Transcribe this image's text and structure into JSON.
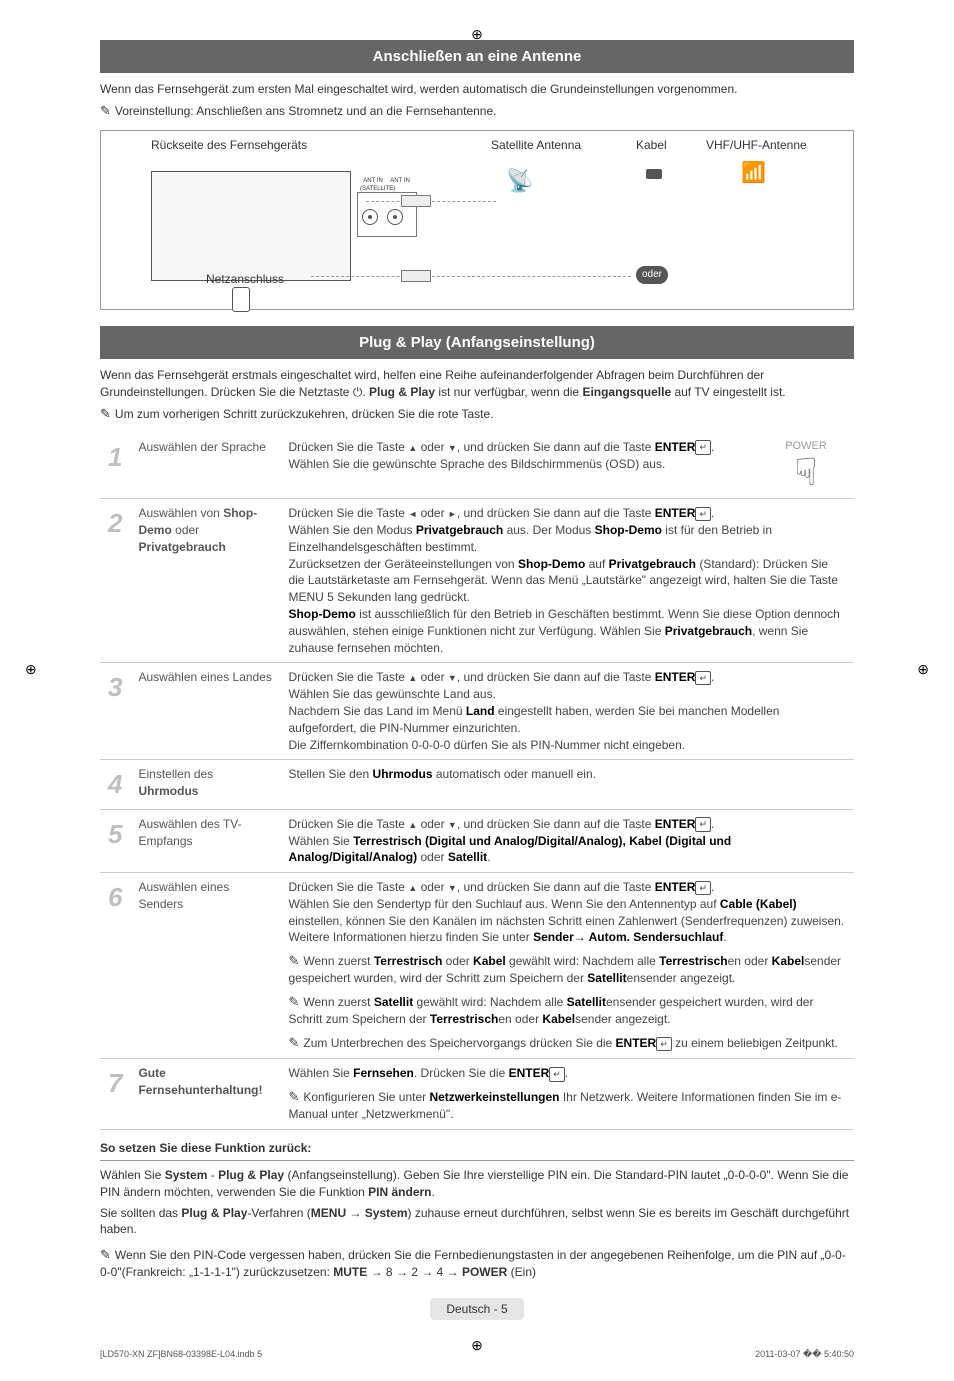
{
  "regmarks": "⊕",
  "section1": {
    "header": "Anschließen an eine Antenne",
    "intro": "Wenn das Fernsehgerät zum ersten Mal eingeschaltet wird, werden automatisch die Grundeinstellungen vorgenommen.",
    "note": "Voreinstellung: Anschließen ans Stromnetz und an die Fernsehantenne."
  },
  "diagram": {
    "tv_back": "Rückseite des Fernsehgeräts",
    "netzanschluss": "Netzanschluss",
    "satellite": "Satellite Antenna",
    "kabel": "Kabel",
    "vhf": "VHF/UHF-Antenne",
    "oder": "oder",
    "ant_sat": "ANT IN (SATELLITE)",
    "ant_in": "ANT IN"
  },
  "section2": {
    "header": "Plug & Play (Anfangseinstellung)",
    "intro1": "Wenn das Fernsehgerät erstmals eingeschaltet wird, helfen eine Reihe aufeinanderfolgender Abfragen beim Durchführen der Grundeinstellungen. Drücken Sie die Netztaste ",
    "intro2_part1": ". ",
    "intro2_bold1": "Plug & Play",
    "intro2_part2": " ist nur verfügbar, wenn die ",
    "intro2_bold2": "Eingangsquelle",
    "intro2_part3": " auf TV eingestellt ist.",
    "note": "Um zum vorherigen Schritt zurückzukehren, drücken Sie die rote Taste.",
    "power_label": "POWER"
  },
  "steps": [
    {
      "num": "1",
      "title": "Auswählen der Sprache",
      "desc_html": "Drücken Sie die Taste <span class='arrow-up'></span> oder <span class='arrow-down'></span>, und drücken Sie dann auf die Taste <b>ENTER</b><span class='enter-icon'>↵</span>.<br>Wählen Sie die gewünschte Sprache des Bildschirmmenüs (OSD) aus."
    },
    {
      "num": "2",
      "title_html": "Auswählen von <b>Shop-Demo</b> oder <b>Privatgebrauch</b>",
      "desc_html": "Drücken Sie die Taste <span class='arrow-left'></span> oder <span class='arrow-right'></span>, und drücken Sie dann auf die Taste <b>ENTER</b><span class='enter-icon'>↵</span>.<br>Wählen Sie den Modus <b>Privatgebrauch</b> aus. Der Modus <b>Shop-Demo</b> ist für den Betrieb in Einzelhandelsgeschäften bestimmt.<br>Zurücksetzen der Geräteeinstellungen von <b>Shop-Demo</b> auf <b>Privatgebrauch</b> (Standard): Drücken Sie die Lautstärketaste am Fernsehgerät. Wenn das Menü „Lautstärke\" angezeigt wird, halten Sie die Taste MENU 5 Sekunden lang gedrückt.<br><b>Shop-Demo</b> ist ausschließlich für den Betrieb in Geschäften bestimmt. Wenn Sie diese Option dennoch auswählen, stehen einige Funktionen nicht zur Verfügung. Wählen Sie <b>Privatgebrauch</b>, wenn Sie zuhause fernsehen möchten."
    },
    {
      "num": "3",
      "title": "Auswählen eines Landes",
      "desc_html": "Drücken Sie die Taste <span class='arrow-up'></span> oder <span class='arrow-down'></span>, und drücken Sie dann auf die Taste <b>ENTER</b><span class='enter-icon'>↵</span>.<br>Wählen Sie das gewünschte Land aus.<br>Nachdem Sie das Land im Menü <b>Land</b> eingestellt haben, werden Sie bei manchen Modellen aufgefordert, die PIN-Nummer einzurichten.<br>Die Ziffernkombination 0-0-0-0 dürfen Sie als PIN-Nummer nicht eingeben."
    },
    {
      "num": "4",
      "title_html": "Einstellen des <b>Uhrmodus</b>",
      "desc_html": "Stellen Sie den <b>Uhrmodus</b> automatisch oder manuell ein."
    },
    {
      "num": "5",
      "title": "Auswählen des TV-Empfangs",
      "desc_html": "Drücken Sie die Taste <span class='arrow-up'></span> oder <span class='arrow-down'></span>, und drücken Sie dann auf die Taste <b>ENTER</b><span class='enter-icon'>↵</span>.<br>Wählen Sie <b>Terrestrisch (Digital und Analog/Digital/Analog), Kabel (Digital und Analog/Digital/Analog)</b> oder <b>Satellit</b>."
    },
    {
      "num": "6",
      "title": "Auswählen eines Senders",
      "desc_html": "Drücken Sie die Taste <span class='arrow-up'></span> oder <span class='arrow-down'></span>, und drücken Sie dann auf die Taste <b>ENTER</b><span class='enter-icon'>↵</span>.<br>Wählen Sie den Sendertyp für den Suchlauf aus. Wenn Sie den Antennentyp auf <b>Cable (Kabel)</b> einstellen, können Sie den Kanälen im nächsten Schritt einen Zahlenwert (Senderfrequenzen) zuweisen. Weitere Informationen hierzu finden Sie unter <b>Sender→ Autom. Sendersuchlauf</b>.<div class='sub-note note-icon'>Wenn zuerst <b>Terrestrisch</b> oder <b>Kabel</b> gewählt wird: Nachdem alle <b>Terrestrisch</b>en oder <b>Kabel</b>sender gespeichert wurden, wird der Schritt zum Speichern der <b>Satellit</b>ensender angezeigt.</div><div class='sub-note note-icon'>Wenn zuerst <b>Satellit</b> gewählt wird: Nachdem alle <b>Satellit</b>ensender gespeichert wurden, wird der Schritt zum Speichern der <b>Terrestrisch</b>en oder <b>Kabel</b>sender angezeigt.</div><div class='sub-note note-icon'>Zum Unterbrechen des Speichervorgangs drücken Sie die <b>ENTER</b><span class='enter-icon'>↵</span> zu einem beliebigen Zeitpunkt.</div>"
    },
    {
      "num": "7",
      "title_html": "<b>Gute Fernsehunterhaltung!</b>",
      "desc_html": "Wählen Sie <b>Fernsehen</b>. Drücken Sie die <b>ENTER</b><span class='enter-icon'>↵</span>.<div class='sub-note note-icon'>Konfigurieren Sie unter <b>Netzwerkeinstellungen</b> Ihr Netzwerk. Weitere Informationen finden Sie im e-Manual unter „Netzwerkmenü\".</div>"
    }
  ],
  "reset": {
    "heading": "So setzen Sie diese Funktion zurück:",
    "p1_html": "Wählen Sie <b>System</b> - <b>Plug & Play</b> (Anfangseinstellung). Geben Sie Ihre vierstellige PIN ein. Die Standard-PIN lautet „0-0-0-0\". Wenn Sie die PIN ändern möchten, verwenden Sie die Funktion <b>PIN ändern</b>.",
    "p2_html": "Sie sollten das <b>Plug & Play</b>-Verfahren (<b>MENU → System</b>) zuhause erneut durchführen, selbst wenn Sie es bereits im Geschäft durchgeführt haben.",
    "note_html": "Wenn Sie den PIN-Code vergessen haben, drücken Sie die Fernbedienungstasten in der angegebenen Reihenfolge, um die PIN auf „0-0-0-0\"(Frankreich: „1-1-1-1\") zurückzusetzen: <b>MUTE</b> → 8 → 2 → 4 → <b>POWER</b> (Ein)"
  },
  "footer": {
    "page": "Deutsch - 5",
    "doc_left": "[LD570-XN ZF]BN68-03398E-L04.indb   5",
    "doc_right": "2011-03-07   �� 5:40:50"
  }
}
